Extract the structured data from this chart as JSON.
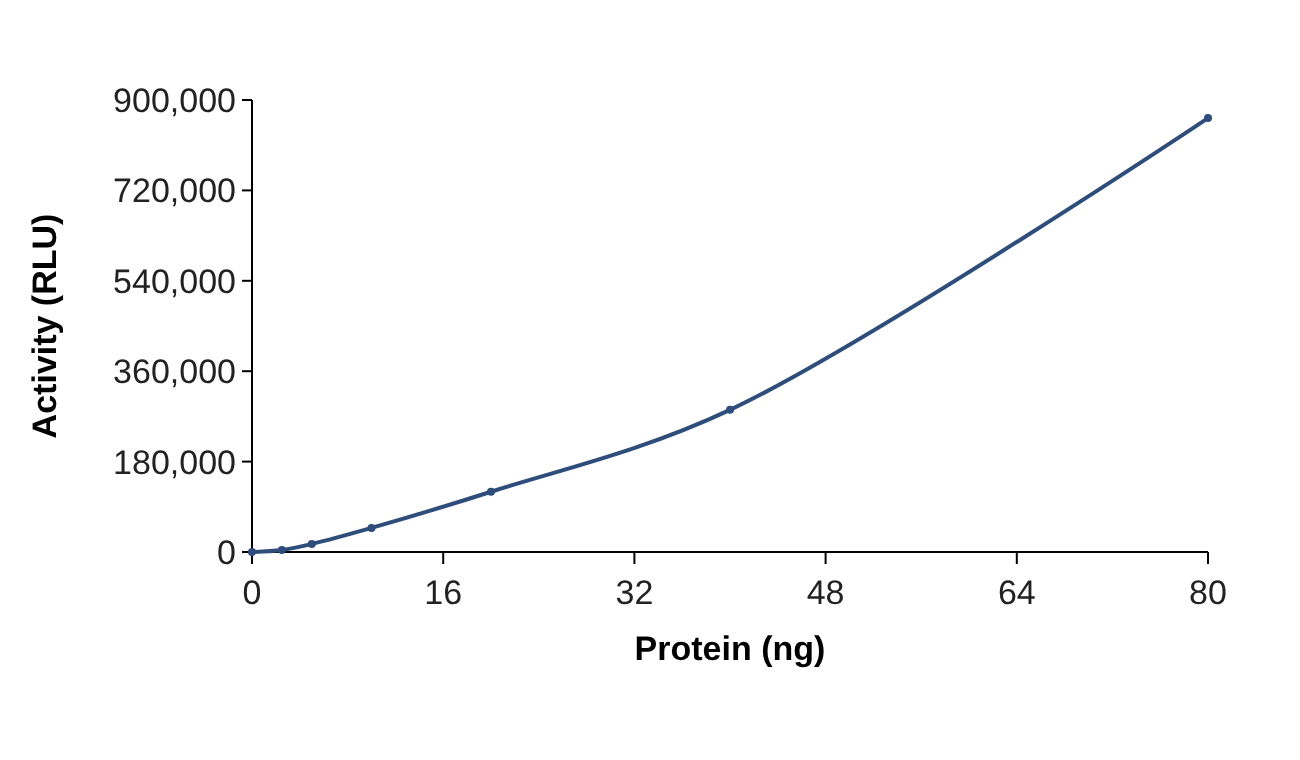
{
  "chart_data": {
    "type": "line",
    "xlabel": "Protein (ng)",
    "ylabel": "Activity (RLU)",
    "x": [
      0,
      2.5,
      5,
      10,
      20,
      40,
      80
    ],
    "series": [
      {
        "color": "#2e4d7b",
        "values": [
          0,
          4000,
          16000,
          48000,
          120000,
          283000,
          864000
        ]
      }
    ],
    "xlim": [
      0,
      80
    ],
    "xticks": [
      0,
      16,
      32,
      48,
      64,
      80
    ],
    "ylim": [
      0,
      900000
    ],
    "yticks": [
      {
        "value": 0,
        "label": "0"
      },
      {
        "value": 180000,
        "label": "180,000"
      },
      {
        "value": 360000,
        "label": "360,000"
      },
      {
        "value": 540000,
        "label": "540,000"
      },
      {
        "value": 720000,
        "label": "720,000"
      },
      {
        "value": 900000,
        "label": "900,000"
      }
    ],
    "marker": "circle",
    "line_style": "solid",
    "grid": false
  }
}
